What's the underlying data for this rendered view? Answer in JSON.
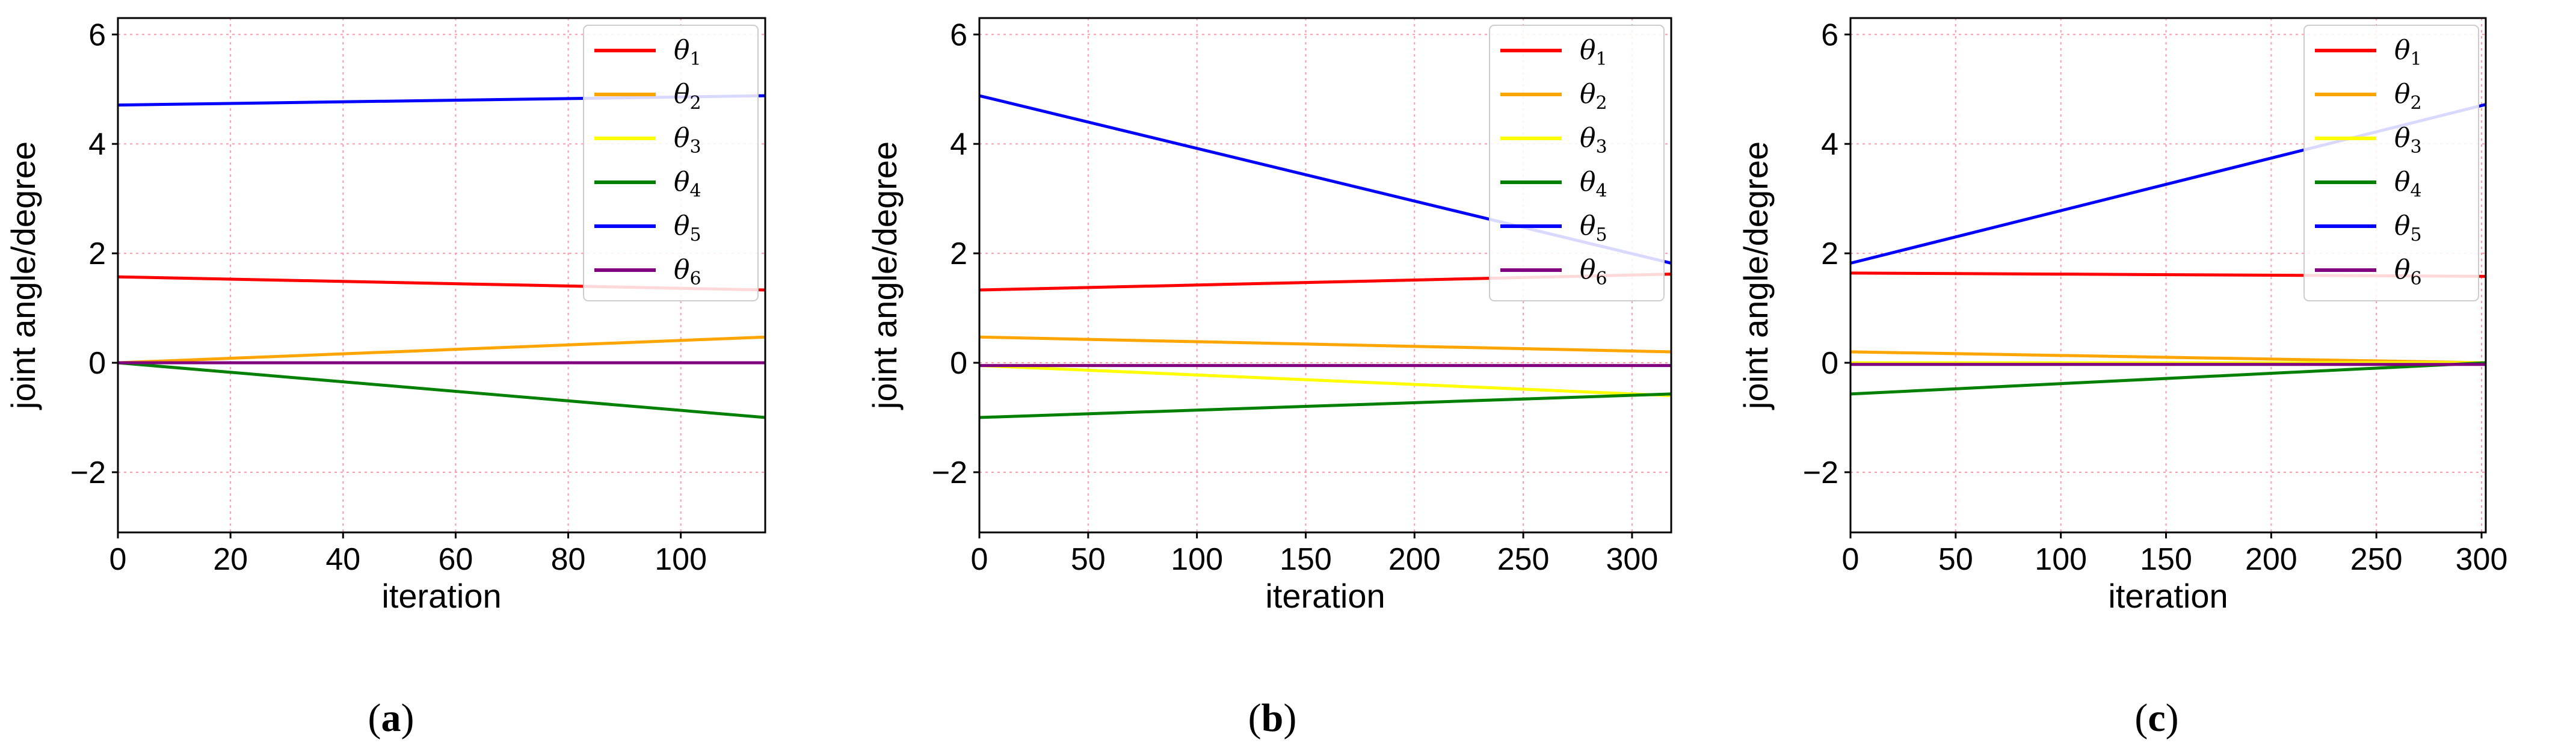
{
  "chart_data": [
    {
      "type": "line",
      "caption": {
        "open": "(",
        "letter": "a",
        "close": ")"
      },
      "xlabel": "iteration",
      "ylabel": "joint angle/degree",
      "xlim": [
        0,
        115
      ],
      "ylim": [
        -3.1,
        6.3
      ],
      "xticks": [
        0,
        20,
        40,
        60,
        80,
        100
      ],
      "yticks": [
        -2,
        0,
        2,
        4,
        6
      ],
      "ytick_labels": [
        "−2",
        "0",
        "2",
        "4",
        "6"
      ],
      "grid": true,
      "legend_position": "top-right",
      "series": [
        {
          "name": "θ1",
          "symbol": "θ",
          "sub": "1",
          "color": "#ff0000",
          "x": [
            0,
            115
          ],
          "values": [
            1.57,
            1.33
          ]
        },
        {
          "name": "θ2",
          "symbol": "θ",
          "sub": "2",
          "color": "#ffa500",
          "x": [
            0,
            115
          ],
          "values": [
            0.0,
            0.47
          ]
        },
        {
          "name": "θ3",
          "symbol": "θ",
          "sub": "3",
          "color": "#ffff00",
          "x": [
            0,
            115
          ],
          "values": [
            0.0,
            0.0
          ]
        },
        {
          "name": "θ4",
          "symbol": "θ",
          "sub": "4",
          "color": "#008000",
          "x": [
            0,
            115
          ],
          "values": [
            0.0,
            -1.0
          ]
        },
        {
          "name": "θ5",
          "symbol": "θ",
          "sub": "5",
          "color": "#0000ff",
          "x": [
            0,
            115
          ],
          "values": [
            4.71,
            4.88
          ]
        },
        {
          "name": "θ6",
          "symbol": "θ",
          "sub": "6",
          "color": "#800080",
          "x": [
            0,
            115
          ],
          "values": [
            0.0,
            0.0
          ]
        }
      ]
    },
    {
      "type": "line",
      "caption": {
        "open": "(",
        "letter": "b",
        "close": ")"
      },
      "xlabel": "iteration",
      "ylabel": "joint angle/degree",
      "xlim": [
        0,
        318
      ],
      "ylim": [
        -3.1,
        6.3
      ],
      "xticks": [
        0,
        50,
        100,
        150,
        200,
        250,
        300
      ],
      "yticks": [
        -2,
        0,
        2,
        4,
        6
      ],
      "ytick_labels": [
        "−2",
        "0",
        "2",
        "4",
        "6"
      ],
      "grid": true,
      "legend_position": "top-right",
      "series": [
        {
          "name": "θ1",
          "symbol": "θ",
          "sub": "1",
          "color": "#ff0000",
          "x": [
            0,
            318
          ],
          "values": [
            1.33,
            1.62
          ]
        },
        {
          "name": "θ2",
          "symbol": "θ",
          "sub": "2",
          "color": "#ffa500",
          "x": [
            0,
            318
          ],
          "values": [
            0.47,
            0.2
          ]
        },
        {
          "name": "θ3",
          "symbol": "θ",
          "sub": "3",
          "color": "#ffff00",
          "x": [
            0,
            318
          ],
          "values": [
            -0.05,
            -0.6
          ]
        },
        {
          "name": "θ4",
          "symbol": "θ",
          "sub": "4",
          "color": "#008000",
          "x": [
            0,
            318
          ],
          "values": [
            -1.0,
            -0.57
          ]
        },
        {
          "name": "θ5",
          "symbol": "θ",
          "sub": "5",
          "color": "#0000ff",
          "x": [
            0,
            318
          ],
          "values": [
            4.88,
            1.82
          ]
        },
        {
          "name": "θ6",
          "symbol": "θ",
          "sub": "6",
          "color": "#800080",
          "x": [
            0,
            318
          ],
          "values": [
            -0.05,
            -0.05
          ]
        }
      ]
    },
    {
      "type": "line",
      "caption": {
        "open": "(",
        "letter": "c",
        "close": ")"
      },
      "xlabel": "iteration",
      "ylabel": "joint angle/degree",
      "xlim": [
        0,
        302
      ],
      "ylim": [
        -3.1,
        6.3
      ],
      "xticks": [
        0,
        50,
        100,
        150,
        200,
        250,
        300
      ],
      "yticks": [
        -2,
        0,
        2,
        4,
        6
      ],
      "ytick_labels": [
        "−2",
        "0",
        "2",
        "4",
        "6"
      ],
      "grid": true,
      "legend_position": "top-right",
      "series": [
        {
          "name": "θ1",
          "symbol": "θ",
          "sub": "1",
          "color": "#ff0000",
          "x": [
            0,
            302
          ],
          "values": [
            1.64,
            1.58
          ]
        },
        {
          "name": "θ2",
          "symbol": "θ",
          "sub": "2",
          "color": "#ffa500",
          "x": [
            0,
            302
          ],
          "values": [
            0.2,
            0.0
          ]
        },
        {
          "name": "θ3",
          "symbol": "θ",
          "sub": "3",
          "color": "#ffff00",
          "x": [
            0,
            302
          ],
          "values": [
            0.0,
            0.0
          ]
        },
        {
          "name": "θ4",
          "symbol": "θ",
          "sub": "4",
          "color": "#008000",
          "x": [
            0,
            302
          ],
          "values": [
            -0.57,
            0.0
          ]
        },
        {
          "name": "θ5",
          "symbol": "θ",
          "sub": "5",
          "color": "#0000ff",
          "x": [
            0,
            302
          ],
          "values": [
            1.82,
            4.72
          ]
        },
        {
          "name": "θ6",
          "symbol": "θ",
          "sub": "6",
          "color": "#800080",
          "x": [
            0,
            302
          ],
          "values": [
            -0.03,
            -0.03
          ]
        }
      ]
    }
  ]
}
